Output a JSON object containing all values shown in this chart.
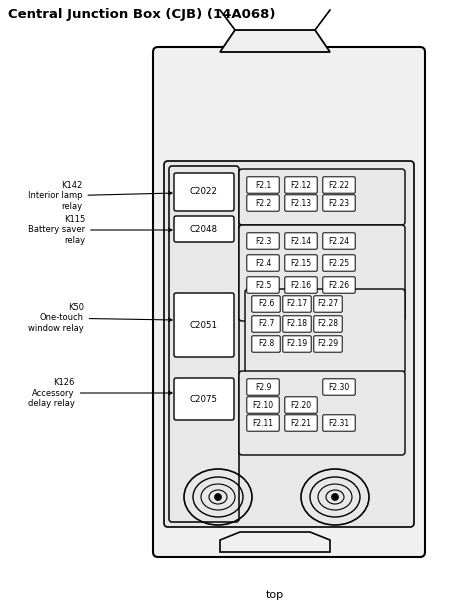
{
  "title": "Central Junction Box (CJB) (14A068)",
  "bottom_label": "top",
  "bg_color": "#ffffff",
  "line_color": "#000000",
  "body_fill": "#f0f0f0",
  "inner_fill": "#e8e8e8",
  "white": "#ffffff",
  "connectors": [
    "C2022",
    "C2048",
    "C2051",
    "C2075"
  ],
  "relay_labels": [
    "K142\nInterior lamp\nrelay",
    "K115\nBattery saver\nrelay",
    "K50\nOne-touch\nwindow relay",
    "K126\nAccessory\ndelay relay"
  ],
  "group1_fuses": [
    [
      "F2.1",
      "F2.12",
      "F2.22"
    ],
    [
      "F2.2",
      "F2.13",
      "F2.23"
    ]
  ],
  "group2_fuses": [
    [
      "F2.3",
      "F2.14",
      "F2.24"
    ],
    [
      "F2.4",
      "F2.15",
      "F2.25"
    ],
    [
      "F2.5",
      "F2.16",
      "F2.26"
    ]
  ],
  "group3_fuses": [
    [
      "F2.6",
      "F2.17",
      "F2.27"
    ],
    [
      "F2.7",
      "F2.18",
      "F2.28"
    ],
    [
      "F2.8",
      "F2.19",
      "F2.29"
    ]
  ],
  "group4_rows": [
    [
      "F2.9",
      "",
      "F2.30"
    ],
    [
      "F2.10",
      "F2.20",
      ""
    ],
    [
      "F2.11",
      "F2.21",
      "F2.31"
    ]
  ]
}
